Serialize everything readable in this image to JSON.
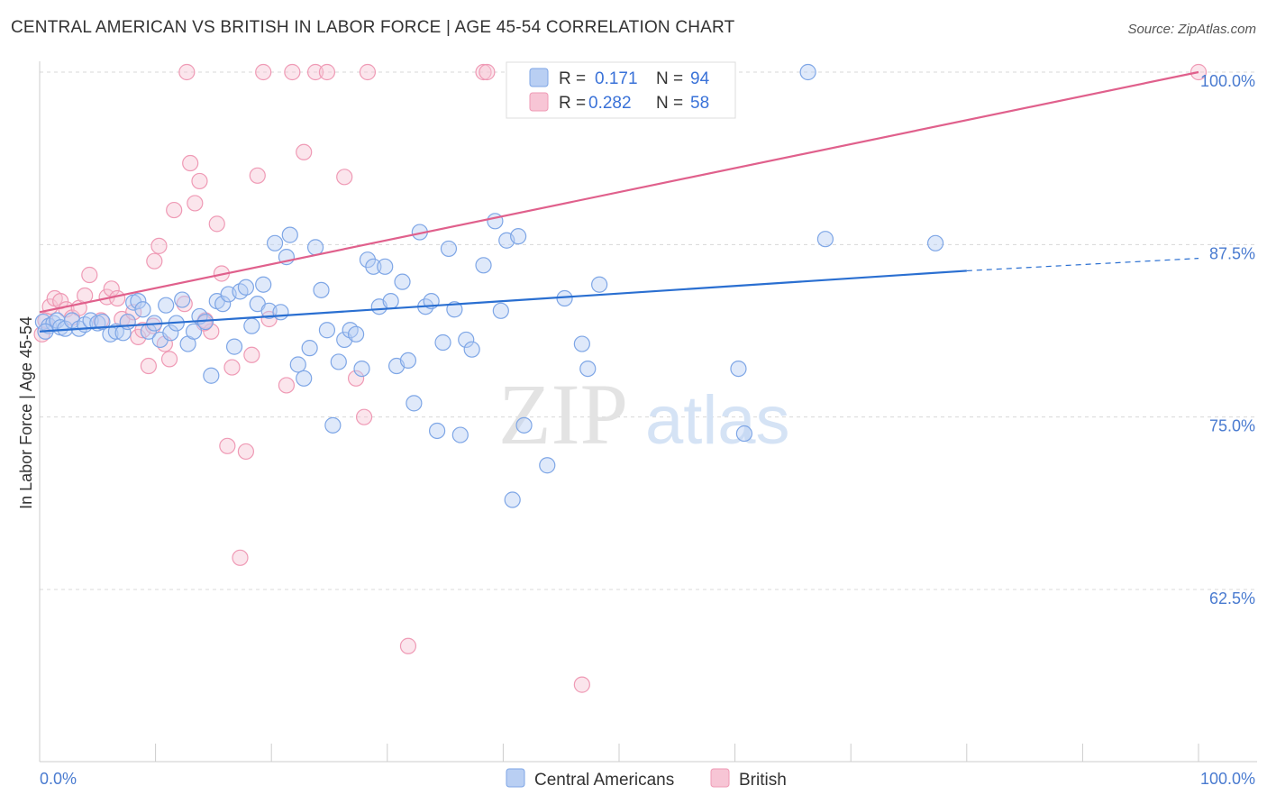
{
  "header": {
    "title": "CENTRAL AMERICAN VS BRITISH IN LABOR FORCE | AGE 45-54 CORRELATION CHART",
    "source": "Source: ZipAtlas.com"
  },
  "watermark": {
    "zip": "ZIP",
    "atlas": "atlas"
  },
  "legend": {
    "r_label": "R =",
    "n_label": "N =",
    "series": [
      {
        "name": "Central Americans",
        "r": "0.171",
        "n": "94",
        "color": "#7ea6e6",
        "fill": "#b9cff3",
        "line": "#2a6fd1"
      },
      {
        "name": "British",
        "r": "0.282",
        "n": "58",
        "color": "#ef9ab5",
        "fill": "#f7c5d5",
        "line": "#e0608c"
      }
    ]
  },
  "chart_data": {
    "type": "scatter",
    "title": "CENTRAL AMERICAN VS BRITISH IN LABOR FORCE | AGE 45-54 CORRELATION CHART",
    "xlabel": "",
    "ylabel": "In Labor Force | Age 45-54",
    "xlim": [
      0,
      100
    ],
    "ylim": [
      50,
      101.5
    ],
    "x_tick_labels": [
      "0.0%",
      "100.0%"
    ],
    "y_ticks": [
      62.5,
      75.0,
      87.5,
      100.0
    ],
    "y_tick_labels": [
      "62.5%",
      "75.0%",
      "87.5%",
      "100.0%"
    ],
    "series": [
      {
        "name": "Central Americans",
        "trend": {
          "x": [
            0,
            80,
            100
          ],
          "y": [
            81.2,
            85.6,
            86.5
          ],
          "dashed_after": 80
        },
        "points": [
          [
            0.3,
            81.9
          ],
          [
            0.8,
            81.6
          ],
          [
            1.2,
            81.8
          ],
          [
            1.5,
            82.0
          ],
          [
            1.8,
            81.5
          ],
          [
            2.2,
            81.4
          ],
          [
            2.8,
            82.0
          ],
          [
            3.4,
            81.4
          ],
          [
            3.9,
            81.7
          ],
          [
            4.4,
            82.0
          ],
          [
            5.0,
            81.8
          ],
          [
            5.4,
            81.9
          ],
          [
            6.1,
            81.0
          ],
          [
            6.6,
            81.2
          ],
          [
            7.2,
            81.1
          ],
          [
            7.6,
            81.9
          ],
          [
            8.1,
            83.3
          ],
          [
            8.5,
            83.4
          ],
          [
            8.9,
            82.8
          ],
          [
            9.4,
            81.2
          ],
          [
            9.9,
            81.8
          ],
          [
            10.4,
            80.6
          ],
          [
            10.9,
            83.1
          ],
          [
            11.3,
            81.1
          ],
          [
            11.8,
            81.8
          ],
          [
            12.3,
            83.5
          ],
          [
            12.8,
            80.3
          ],
          [
            13.3,
            81.2
          ],
          [
            13.8,
            82.3
          ],
          [
            14.3,
            81.9
          ],
          [
            14.8,
            78.0
          ],
          [
            15.3,
            83.4
          ],
          [
            15.8,
            83.2
          ],
          [
            16.3,
            83.9
          ],
          [
            16.8,
            80.1
          ],
          [
            17.3,
            84.1
          ],
          [
            17.8,
            84.4
          ],
          [
            18.3,
            81.6
          ],
          [
            18.8,
            83.2
          ],
          [
            19.3,
            84.6
          ],
          [
            19.8,
            82.7
          ],
          [
            20.3,
            87.6
          ],
          [
            20.8,
            82.6
          ],
          [
            21.3,
            86.6
          ],
          [
            21.6,
            88.2
          ],
          [
            22.3,
            78.8
          ],
          [
            22.8,
            77.8
          ],
          [
            23.3,
            80.0
          ],
          [
            23.8,
            87.3
          ],
          [
            24.3,
            84.2
          ],
          [
            24.8,
            81.3
          ],
          [
            25.3,
            74.4
          ],
          [
            25.8,
            79.0
          ],
          [
            26.3,
            80.6
          ],
          [
            26.8,
            81.3
          ],
          [
            27.3,
            81.0
          ],
          [
            27.8,
            78.5
          ],
          [
            28.3,
            86.4
          ],
          [
            28.8,
            85.9
          ],
          [
            29.3,
            83.0
          ],
          [
            29.8,
            85.9
          ],
          [
            30.3,
            83.4
          ],
          [
            30.8,
            78.7
          ],
          [
            31.3,
            84.8
          ],
          [
            31.8,
            79.1
          ],
          [
            32.3,
            76.0
          ],
          [
            32.8,
            88.4
          ],
          [
            33.3,
            83.0
          ],
          [
            33.8,
            83.4
          ],
          [
            34.3,
            74.0
          ],
          [
            34.8,
            80.4
          ],
          [
            35.3,
            87.2
          ],
          [
            35.8,
            82.8
          ],
          [
            36.3,
            73.7
          ],
          [
            36.8,
            80.6
          ],
          [
            37.3,
            79.9
          ],
          [
            38.3,
            86.0
          ],
          [
            39.3,
            89.2
          ],
          [
            39.8,
            82.7
          ],
          [
            40.3,
            87.8
          ],
          [
            40.8,
            69.0
          ],
          [
            41.3,
            88.1
          ],
          [
            41.8,
            74.4
          ],
          [
            43.8,
            71.5
          ],
          [
            45.3,
            83.6
          ],
          [
            46.8,
            80.3
          ],
          [
            47.3,
            78.5
          ],
          [
            48.3,
            84.6
          ],
          [
            60.3,
            78.5
          ],
          [
            60.8,
            73.8
          ],
          [
            66.3,
            100.0
          ],
          [
            67.8,
            87.9
          ],
          [
            77.3,
            87.6
          ],
          [
            0.5,
            81.2
          ]
        ]
      },
      {
        "name": "British",
        "trend": {
          "x": [
            0,
            100
          ],
          "y": [
            82.6,
            100.0
          ]
        },
        "points": [
          [
            0.2,
            81.0
          ],
          [
            0.5,
            82.0
          ],
          [
            0.9,
            83.0
          ],
          [
            1.3,
            83.6
          ],
          [
            1.8,
            83.4
          ],
          [
            2.3,
            82.8
          ],
          [
            2.8,
            82.2
          ],
          [
            3.4,
            82.9
          ],
          [
            3.9,
            83.8
          ],
          [
            4.3,
            85.3
          ],
          [
            5.3,
            82.0
          ],
          [
            5.8,
            83.7
          ],
          [
            6.2,
            84.3
          ],
          [
            6.7,
            83.6
          ],
          [
            7.1,
            82.1
          ],
          [
            7.6,
            81.9
          ],
          [
            8.1,
            82.6
          ],
          [
            8.5,
            80.8
          ],
          [
            8.9,
            81.3
          ],
          [
            9.4,
            78.7
          ],
          [
            9.9,
            86.3
          ],
          [
            10.3,
            87.4
          ],
          [
            10.8,
            80.3
          ],
          [
            11.2,
            79.2
          ],
          [
            11.6,
            90.0
          ],
          [
            12.5,
            83.2
          ],
          [
            12.7,
            100.0
          ],
          [
            13.0,
            93.4
          ],
          [
            13.4,
            90.5
          ],
          [
            13.8,
            92.1
          ],
          [
            14.3,
            82.0
          ],
          [
            14.8,
            81.2
          ],
          [
            15.3,
            89.0
          ],
          [
            15.7,
            85.4
          ],
          [
            16.2,
            72.9
          ],
          [
            16.6,
            78.6
          ],
          [
            17.3,
            64.8
          ],
          [
            17.8,
            72.5
          ],
          [
            18.3,
            79.5
          ],
          [
            18.8,
            92.5
          ],
          [
            19.3,
            100.0
          ],
          [
            19.8,
            82.1
          ],
          [
            21.3,
            77.3
          ],
          [
            21.8,
            100.0
          ],
          [
            22.8,
            94.2
          ],
          [
            23.8,
            100.0
          ],
          [
            24.8,
            100.0
          ],
          [
            26.3,
            92.4
          ],
          [
            27.3,
            77.8
          ],
          [
            28.0,
            75.0
          ],
          [
            28.3,
            100.0
          ],
          [
            31.8,
            58.4
          ],
          [
            38.3,
            100.0
          ],
          [
            38.6,
            100.0
          ],
          [
            46.8,
            55.6
          ],
          [
            100.0,
            100.0
          ],
          [
            9.8,
            81.6
          ],
          [
            14.2,
            81.8
          ]
        ]
      }
    ]
  },
  "bottom_legend": {
    "items": [
      "Central Americans",
      "British"
    ]
  }
}
